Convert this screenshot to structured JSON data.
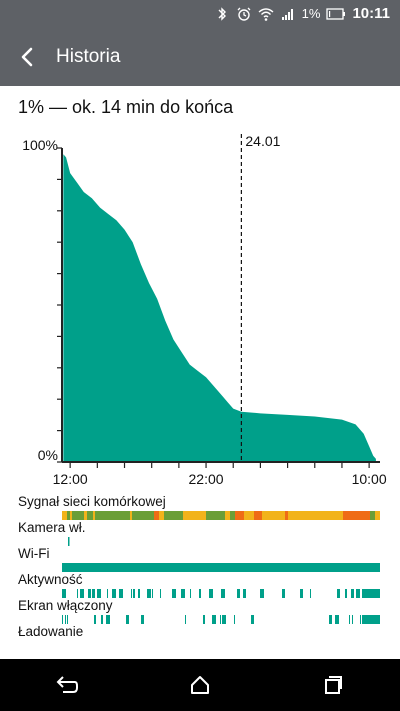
{
  "status_bar": {
    "battery_percent": "1%",
    "time": "10:11",
    "icons": [
      "bluetooth-icon",
      "alarm-icon",
      "wifi-icon",
      "signal-icon",
      "battery-icon"
    ]
  },
  "app_bar": {
    "title": "Historia",
    "back_icon": "back-arrow-icon"
  },
  "summary": "1% — ok. 14 min do końca",
  "chart_data": {
    "type": "area",
    "ylim": [
      0,
      100
    ],
    "y_tick_labels": [
      "100%",
      "0%"
    ],
    "x_tick_labels": [
      "12:00",
      "22:00",
      "10:00"
    ],
    "x_ticks_hours": [
      0,
      10,
      22
    ],
    "x_range_hours": [
      -0.6,
      22.8
    ],
    "marker_label": "24.01",
    "marker_hour": 12.6,
    "x_hours": [
      -0.5,
      -0.3,
      0.0,
      0.5,
      1.0,
      1.6,
      2.2,
      2.8,
      3.4,
      4.0,
      4.6,
      5.2,
      5.8,
      6.4,
      7.0,
      7.6,
      8.2,
      8.8,
      9.4,
      10.0,
      10.6,
      11.2,
      11.6,
      12.0,
      12.6,
      14.0,
      16.0,
      18.0,
      20.0,
      21.0,
      21.6,
      22.0,
      22.3,
      22.5
    ],
    "values": [
      98,
      97,
      92,
      89,
      86,
      84,
      81,
      79,
      77,
      74,
      70,
      63,
      57,
      52,
      45,
      39,
      35,
      31,
      29,
      27,
      24,
      21,
      19,
      17,
      16,
      15.5,
      15,
      14.5,
      13.5,
      12,
      9,
      5,
      2,
      1
    ],
    "fill_color": "#00a08a"
  },
  "tracks": [
    {
      "label": "Sygnał sieci komórkowej",
      "kind": "signal"
    },
    {
      "label": "Kamera wł.",
      "kind": "camera"
    },
    {
      "label": "Wi-Fi",
      "kind": "wifi"
    },
    {
      "label": "Aktywność",
      "kind": "activity"
    },
    {
      "label": "Ekran włączony",
      "kind": "screen"
    },
    {
      "label": "Ładowanie",
      "kind": "charging"
    }
  ],
  "colors": {
    "bar_bg": "#5e6166",
    "accent": "#00a08a",
    "signal_green": "#6b9e37",
    "signal_yellow": "#f2b31b",
    "signal_orange": "#ef6c16"
  },
  "nav": {
    "back": "nav-back-icon",
    "home": "nav-home-icon",
    "recents": "nav-recents-icon"
  }
}
